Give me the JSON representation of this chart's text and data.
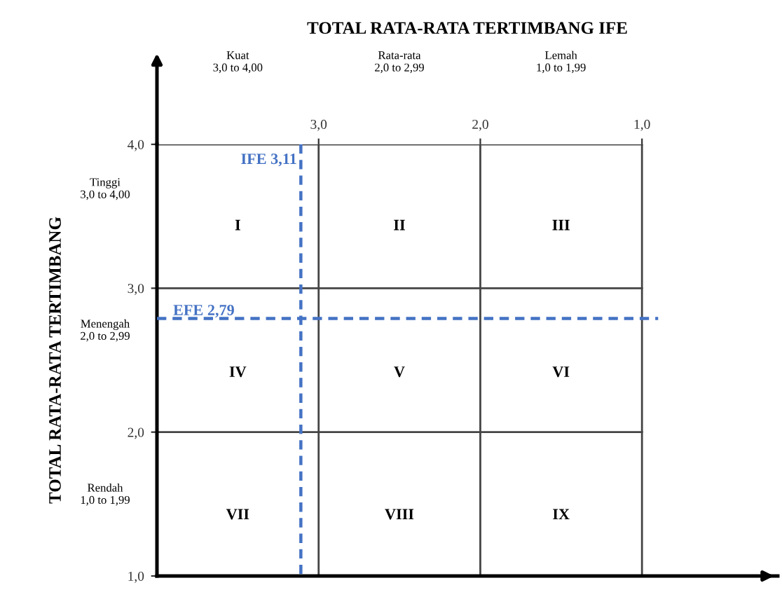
{
  "chart_data": {
    "type": "line",
    "xlabel": "TOTAL RATA-RATA TERTIMBANG IFE",
    "ylabel": "TOTAL RATA-RATA TERTIMBANG",
    "xlim": [
      4,
      0.16
    ],
    "ylim": [
      1,
      4
    ],
    "xticks": [
      {
        "value": 3,
        "label": "3,0"
      },
      {
        "value": 2,
        "label": "2,0"
      },
      {
        "value": 1,
        "label": "1,0"
      }
    ],
    "yticks": [
      {
        "value": 4,
        "label": "4,0"
      },
      {
        "value": 3,
        "label": "3,0"
      },
      {
        "value": 2,
        "label": "2,0"
      },
      {
        "value": 1,
        "label": "1,0"
      }
    ],
    "grid": true,
    "line_style": "dashed",
    "marker": "none",
    "series": [
      {
        "color": "#4472c4",
        "x": [
          3.11,
          3.11
        ],
        "values": [
          4,
          1
        ]
      },
      {
        "color": "#4472c4",
        "x": [
          4,
          0.9
        ],
        "values": [
          2.79,
          2.79
        ]
      }
    ],
    "annotations": [
      {
        "text": "IFE 3,11",
        "x": 3.11,
        "y": 3.89
      },
      {
        "text": "EFE 2,79",
        "x": 3.9,
        "y": 2.79
      },
      "Kuat\n3,0 to 4,00",
      "Rata-rata\n2,0 to 2,99",
      "Lemah\n1,0 to 1,99",
      "Tinggi\n3,0 to 4,00",
      "Menengah\n2,0 to 2,99",
      "Rendah\n1,0 to 1,99",
      "I",
      "II",
      "III",
      "IV",
      "V",
      "VI",
      "VII",
      "VIII",
      "IX"
    ]
  }
}
